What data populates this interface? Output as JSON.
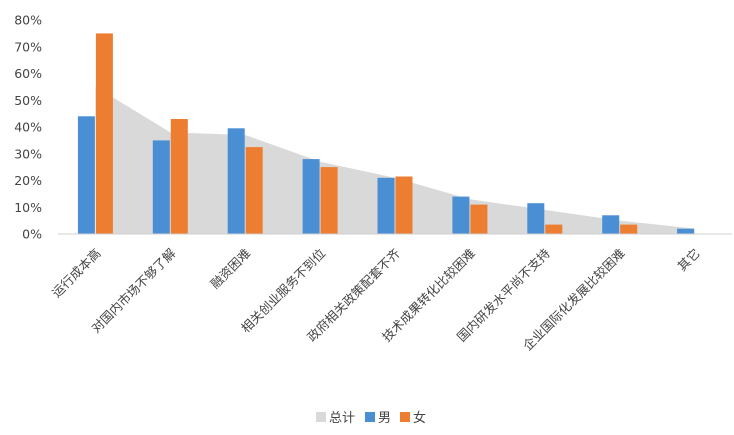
{
  "chart_data": {
    "type": "bar",
    "categories": [
      "运行成本高",
      "对国内市场不够了解",
      "融资困难",
      "相关创业服务不到位",
      "政府相关政策配套不齐",
      "技术成果转化比较困难",
      "国内研发水平尚不支持",
      "企业国际化发展比较困难",
      "其它"
    ],
    "series": [
      {
        "name": "总计",
        "kind": "area",
        "color": "#d9d9d9",
        "values": [
          55,
          38,
          37,
          27,
          21,
          13,
          9,
          5,
          2
        ]
      },
      {
        "name": "男",
        "kind": "bar",
        "color": "#4a8fd4",
        "values": [
          44,
          35,
          39.5,
          28,
          21,
          14,
          11.5,
          7,
          2
        ]
      },
      {
        "name": "女",
        "kind": "bar",
        "color": "#ed7d31",
        "values": [
          75,
          43,
          32.5,
          25,
          21.5,
          11,
          3.5,
          3.5,
          0
        ]
      }
    ],
    "ylim": [
      0,
      80
    ],
    "yticks": [
      "0%",
      "10%",
      "20%",
      "30%",
      "40%",
      "50%",
      "60%",
      "70%",
      "80%"
    ],
    "grid": false,
    "legend": "bottom"
  }
}
